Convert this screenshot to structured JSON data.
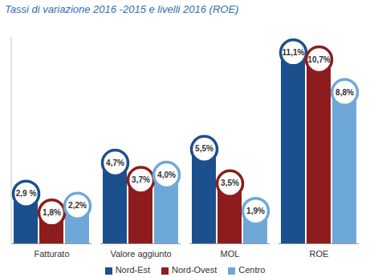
{
  "chart_data": {
    "type": "bar",
    "title": "Tassi di variazione 2016 -2015 e livelli 2016 (ROE)",
    "categories": [
      "Fatturato",
      "Valore aggiunto",
      "MOL",
      "ROE"
    ],
    "series": [
      {
        "name": "Nord-Est",
        "color": "#1c4f8e",
        "values": [
          2.9,
          4.7,
          5.5,
          11.1
        ],
        "value_labels": [
          "2,9 %",
          "4,7%",
          "5,5%",
          "11,1%"
        ]
      },
      {
        "name": "Nord-Ovest",
        "color": "#8e1c1c",
        "values": [
          1.8,
          3.7,
          3.5,
          10.7
        ],
        "value_labels": [
          "1,8%",
          "3,7%",
          "3,5%",
          "10,7%"
        ]
      },
      {
        "name": "Centro",
        "color": "#6ea8d8",
        "values": [
          2.2,
          4.0,
          1.9,
          8.8
        ],
        "value_labels": [
          "2,2%",
          "4,0%",
          "1,9%",
          "8,8%"
        ]
      }
    ],
    "ylim": [
      0,
      12
    ],
    "data_labels": true,
    "tick_labels": "x",
    "legend": "bottom"
  }
}
